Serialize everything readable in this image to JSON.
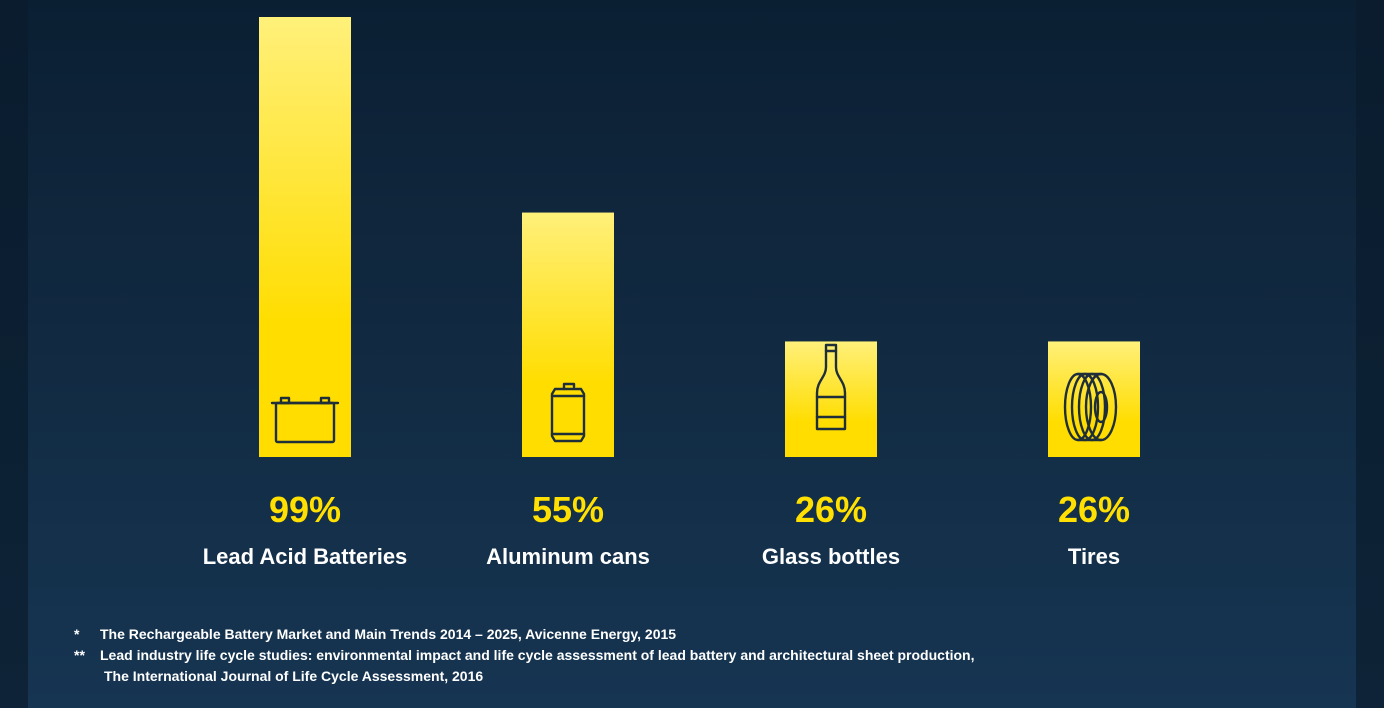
{
  "colors": {
    "background_top": "#0b1f33",
    "background_bottom": "#163552",
    "bar_top": "#fff07a",
    "bar_bottom": "#ffdd00",
    "value_text": "#ffe000",
    "label_text": "#ffffff",
    "icon_stroke": "#1f2f3a"
  },
  "chart_data": {
    "type": "bar",
    "categories": [
      "Lead Acid Batteries",
      "Aluminum cans",
      "Glass bottles",
      "Tires"
    ],
    "values": [
      99,
      55,
      26,
      26
    ],
    "value_labels": [
      "99%",
      "55%",
      "26%",
      "26%"
    ],
    "icons": [
      "battery-icon",
      "can-icon",
      "bottle-icon",
      "tire-icon"
    ],
    "unit": "%",
    "ylim": [
      0,
      99
    ],
    "grid": false,
    "title": "",
    "xlabel": "",
    "ylabel": ""
  },
  "footnotes": {
    "first": {
      "marker": "*",
      "text": "The Rechargeable Battery Market and Main Trends 2014 – 2025, Avicenne Energy, 2015"
    },
    "second": {
      "marker": "**",
      "text": "Lead industry life cycle studies: environmental impact and life cycle assessment of lead battery and architectural sheet production,",
      "continuation": "The International Journal of Life Cycle Assessment, 2016"
    }
  }
}
